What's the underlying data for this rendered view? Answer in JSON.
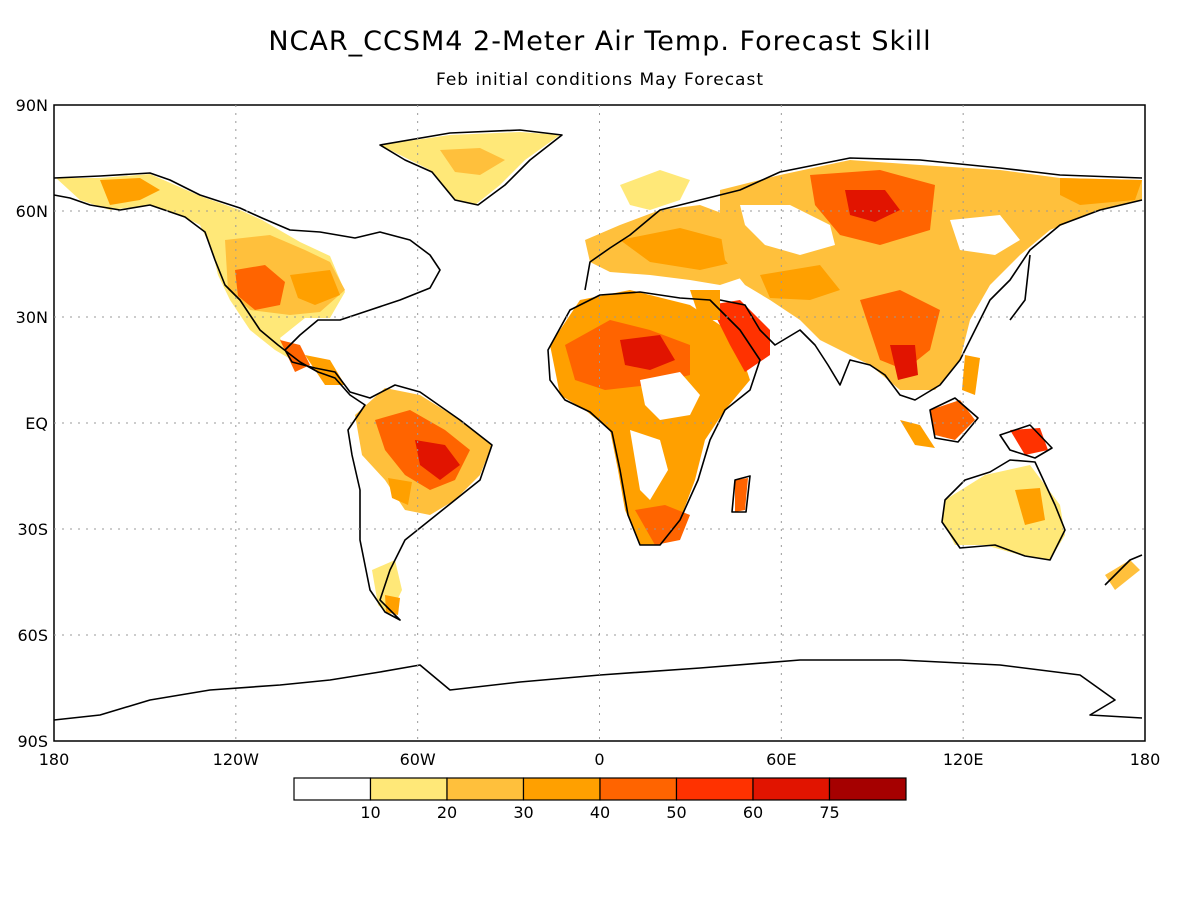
{
  "title": "NCAR_CCSM4 2-Meter Air Temp. Forecast Skill",
  "subtitle": "Feb initial conditions   May Forecast",
  "lat_labels": [
    "90N",
    "60N",
    "30N",
    "EQ",
    "30S",
    "60S",
    "90S"
  ],
  "lon_labels": [
    "180",
    "120W",
    "60W",
    "0",
    "60E",
    "120E",
    "180"
  ],
  "colorbar": {
    "colors": [
      "#ffffff",
      "#ffe878",
      "#ffc03c",
      "#ffa000",
      "#ff6400",
      "#ff3200",
      "#e11400",
      "#a50000"
    ],
    "labels": [
      "10",
      "20",
      "30",
      "40",
      "50",
      "60",
      "75"
    ]
  }
}
